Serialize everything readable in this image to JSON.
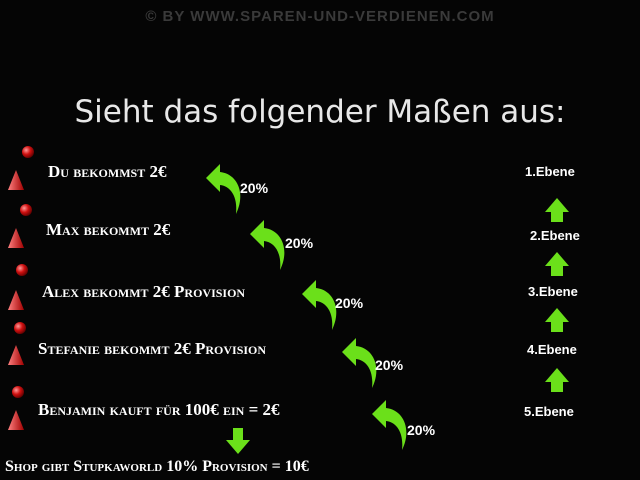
{
  "watermark": "© BY WWW.SPAREN-UND-VERDIENEN.COM",
  "title": "Sieht das folgender Maßen aus:",
  "rows": [
    {
      "text": "Du bekommst 2€",
      "percent": "20%"
    },
    {
      "text": "Max bekommt 2€",
      "percent": "20%"
    },
    {
      "text": "Alex bekommt 2€ Provision",
      "percent": "20%"
    },
    {
      "text": "Stefanie bekommt 2€ Provision",
      "percent": "20%"
    },
    {
      "text": "Benjamin kauft für 100€ ein = 2€",
      "percent": "20%"
    }
  ],
  "levels": [
    "1.Ebene",
    "2.Ebene",
    "3.Ebene",
    "4.Ebene",
    "5.Ebene"
  ],
  "footer": "Shop gibt Stupkaworld 10% Provision = 10€"
}
